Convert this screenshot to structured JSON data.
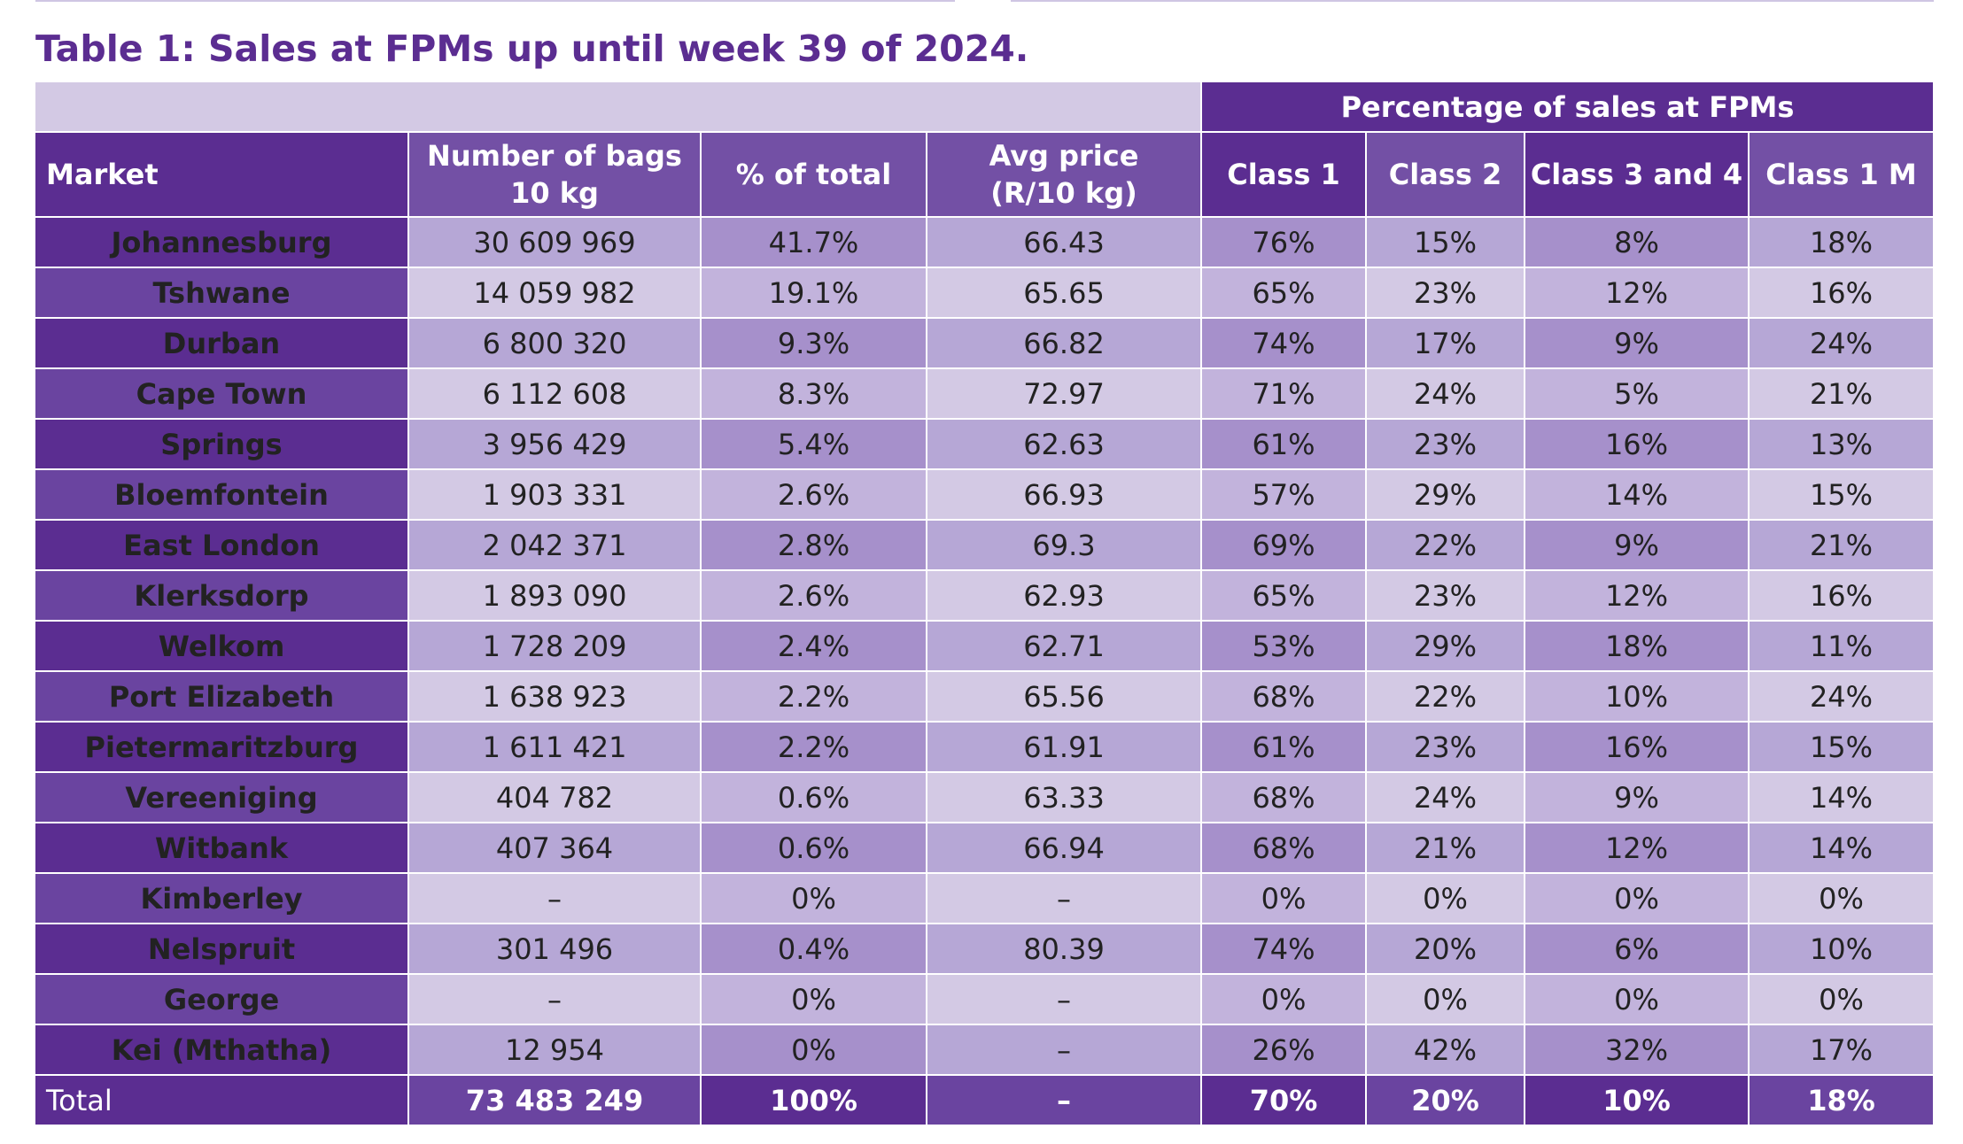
{
  "title": "Table 1: Sales at FPMs up until week 39 of 2024.",
  "group_header": "Percentage of sales at FPMs",
  "columns": {
    "market": "Market",
    "bags_line1": "Number of bags",
    "bags_line2": "10 kg",
    "pct_total": "% of total",
    "price_line1": "Avg price",
    "price_line2": "(R/10 kg)",
    "class1": "Class 1",
    "class2": "Class 2",
    "class34": "Class 3 and 4",
    "class1m": "Class 1 M"
  },
  "rows": [
    {
      "market": "Johannesburg",
      "bags": "30 609 969",
      "pct": "41.7%",
      "price": "66.43",
      "c1": "76%",
      "c2": "15%",
      "c34": "8%",
      "c1m": "18%"
    },
    {
      "market": "Tshwane",
      "bags": "14 059 982",
      "pct": "19.1%",
      "price": "65.65",
      "c1": "65%",
      "c2": "23%",
      "c34": "12%",
      "c1m": "16%"
    },
    {
      "market": "Durban",
      "bags": "6 800 320",
      "pct": "9.3%",
      "price": "66.82",
      "c1": "74%",
      "c2": "17%",
      "c34": "9%",
      "c1m": "24%"
    },
    {
      "market": "Cape Town",
      "bags": "6 112 608",
      "pct": "8.3%",
      "price": "72.97",
      "c1": "71%",
      "c2": "24%",
      "c34": "5%",
      "c1m": "21%"
    },
    {
      "market": "Springs",
      "bags": "3 956 429",
      "pct": "5.4%",
      "price": "62.63",
      "c1": "61%",
      "c2": "23%",
      "c34": "16%",
      "c1m": "13%"
    },
    {
      "market": "Bloemfontein",
      "bags": "1 903 331",
      "pct": "2.6%",
      "price": "66.93",
      "c1": "57%",
      "c2": "29%",
      "c34": "14%",
      "c1m": "15%"
    },
    {
      "market": "East London",
      "bags": "2 042 371",
      "pct": "2.8%",
      "price": "69.3",
      "c1": "69%",
      "c2": "22%",
      "c34": "9%",
      "c1m": "21%"
    },
    {
      "market": "Klerksdorp",
      "bags": "1 893 090",
      "pct": "2.6%",
      "price": "62.93",
      "c1": "65%",
      "c2": "23%",
      "c34": "12%",
      "c1m": "16%"
    },
    {
      "market": "Welkom",
      "bags": "1 728 209",
      "pct": "2.4%",
      "price": "62.71",
      "c1": "53%",
      "c2": "29%",
      "c34": "18%",
      "c1m": "11%"
    },
    {
      "market": "Port Elizabeth",
      "bags": "1 638 923",
      "pct": "2.2%",
      "price": "65.56",
      "c1": "68%",
      "c2": "22%",
      "c34": "10%",
      "c1m": "24%"
    },
    {
      "market": "Pietermaritzburg",
      "bags": "1 611 421",
      "pct": "2.2%",
      "price": "61.91",
      "c1": "61%",
      "c2": "23%",
      "c34": "16%",
      "c1m": "15%"
    },
    {
      "market": "Vereeniging",
      "bags": "404 782",
      "pct": "0.6%",
      "price": "63.33",
      "c1": "68%",
      "c2": "24%",
      "c34": "9%",
      "c1m": "14%"
    },
    {
      "market": "Witbank",
      "bags": "407 364",
      "pct": "0.6%",
      "price": "66.94",
      "c1": "68%",
      "c2": "21%",
      "c34": "12%",
      "c1m": "14%"
    },
    {
      "market": "Kimberley",
      "bags": "–",
      "pct": "0%",
      "price": "–",
      "c1": "0%",
      "c2": "0%",
      "c34": "0%",
      "c1m": "0%"
    },
    {
      "market": "Nelspruit",
      "bags": "301 496",
      "pct": "0.4%",
      "price": "80.39",
      "c1": "74%",
      "c2": "20%",
      "c34": "6%",
      "c1m": "10%"
    },
    {
      "market": "George",
      "bags": "–",
      "pct": "0%",
      "price": "–",
      "c1": "0%",
      "c2": "0%",
      "c34": "0%",
      "c1m": "0%"
    },
    {
      "market": "Kei (Mthatha)",
      "bags": "12 954",
      "pct": "0%",
      "price": "–",
      "c1": "26%",
      "c2": "42%",
      "c34": "32%",
      "c1m": "17%"
    }
  ],
  "total": {
    "market": "Total",
    "bags": "73 483 249",
    "pct": "100%",
    "price": "–",
    "c1": "70%",
    "c2": "20%",
    "c34": "10%",
    "c1m": "18%"
  },
  "colors": {
    "title": "#5b2d91",
    "header_dark": "#5b2d91",
    "header_mid": "#7350a5",
    "row_dark_light": "#b6a7d6",
    "row_dark_dark": "#a690cb",
    "row_light_light": "#d3c9e4",
    "row_light_dark": "#c2b3dc"
  }
}
